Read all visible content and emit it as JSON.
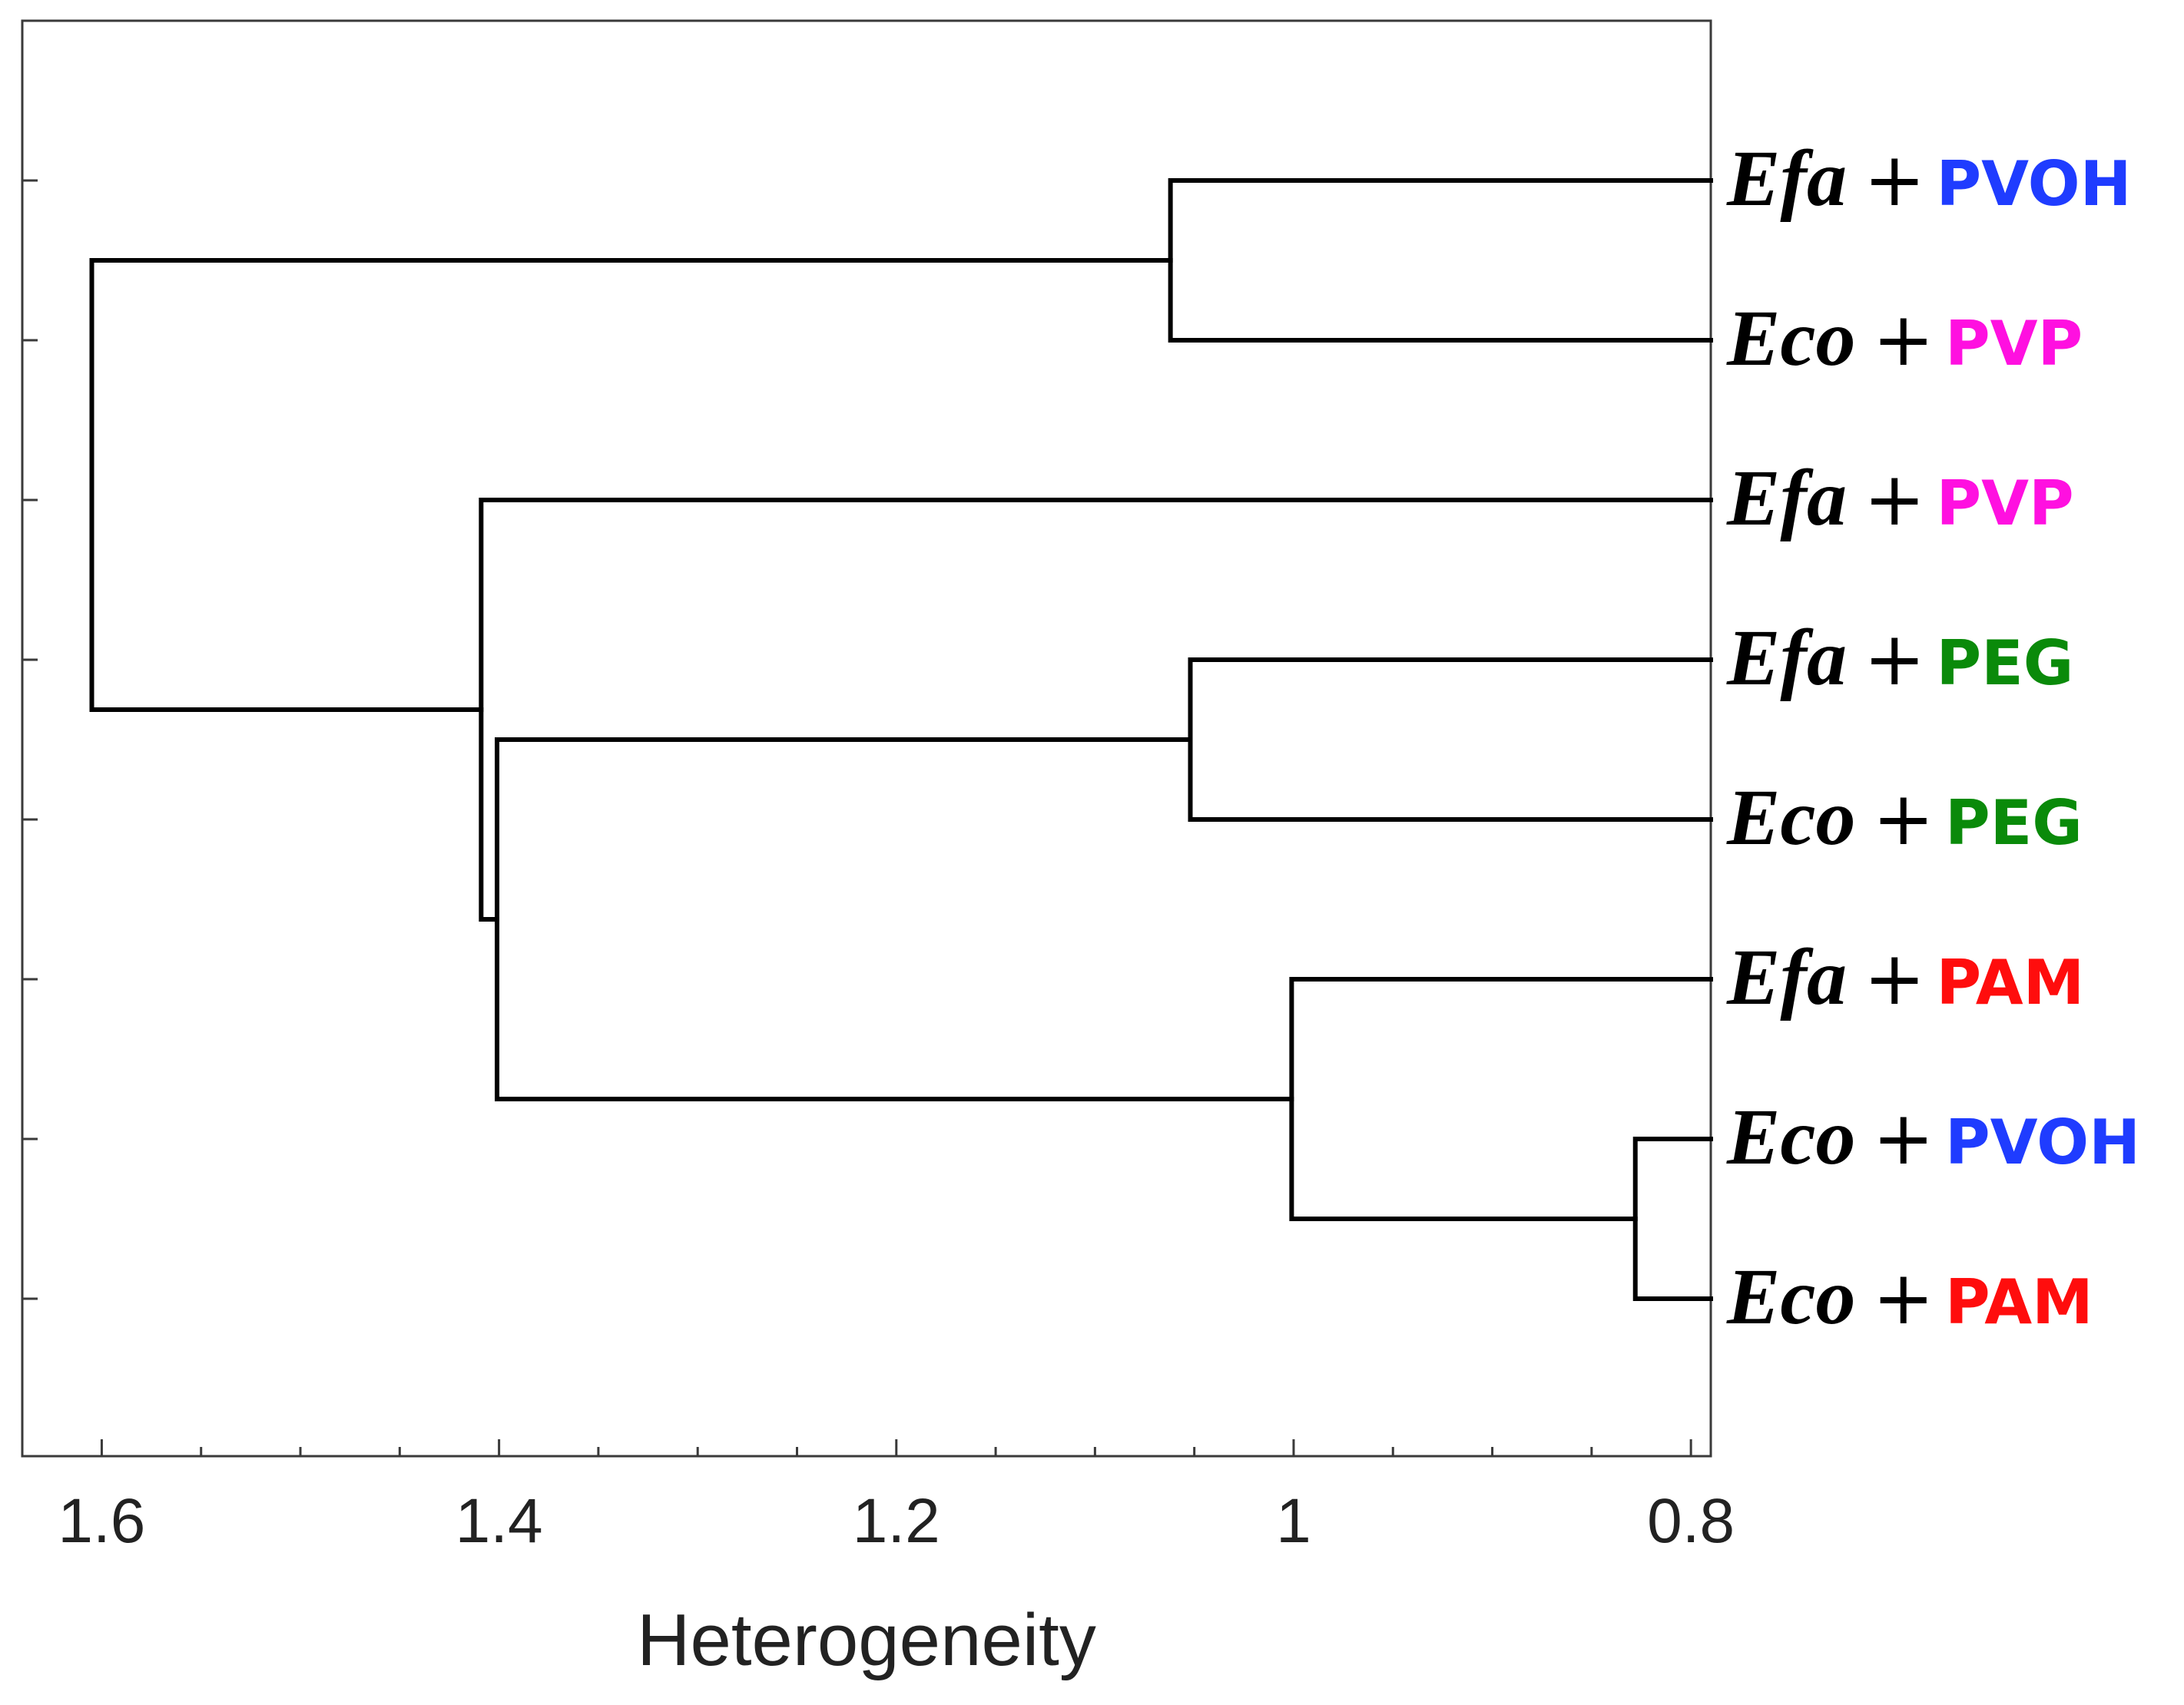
{
  "chart_data": {
    "type": "dendrogram",
    "xlabel": "Heterogeneity",
    "x_range": [
      1.64,
      0.79
    ],
    "x_ticks": [
      "1.6",
      "1.4",
      "1.2",
      "1",
      "0.8"
    ],
    "x_tick_values": [
      1.6,
      1.4,
      1.2,
      1.0,
      0.8
    ],
    "x_minor_tick_values": [
      1.55,
      1.5,
      1.45,
      1.35,
      1.3,
      1.25,
      1.15,
      1.1,
      1.05,
      0.95,
      0.9,
      0.85
    ],
    "grid": false,
    "leaves": [
      {
        "organism": "Efa",
        "plus": "+",
        "polymer": "PVOH",
        "color": "#1f3cff"
      },
      {
        "organism": "Eco",
        "plus": "+",
        "polymer": "PVP",
        "color": "#ff10e0"
      },
      {
        "organism": "Efa",
        "plus": "+",
        "polymer": "PVP",
        "color": "#ff10e0"
      },
      {
        "organism": "Efa",
        "plus": "+",
        "polymer": "PEG",
        "color": "#0a8a0a"
      },
      {
        "organism": "Eco",
        "plus": "+",
        "polymer": "PEG",
        "color": "#0a8a0a"
      },
      {
        "organism": "Efa",
        "plus": "+",
        "polymer": "PAM",
        "color": "#ff0d0d"
      },
      {
        "organism": "Eco",
        "plus": "+",
        "polymer": "PVOH",
        "color": "#1f3cff"
      },
      {
        "organism": "Eco",
        "plus": "+",
        "polymer": "PAM",
        "color": "#ff0d0d"
      }
    ],
    "merges": [
      {
        "id": "m1",
        "left": 6,
        "right": 7,
        "height": 0.828
      },
      {
        "id": "m2",
        "left": 5,
        "right": "m1",
        "height": 1.001
      },
      {
        "id": "m3",
        "left": 3,
        "right": 4,
        "height": 1.052
      },
      {
        "id": "m4",
        "left": 0,
        "right": 1,
        "height": 1.062
      },
      {
        "id": "m5",
        "left": "m3",
        "right": "m2",
        "height": 1.401
      },
      {
        "id": "m6",
        "left": 2,
        "right": "m5",
        "height": 1.409
      },
      {
        "id": "m7",
        "left": "m4",
        "right": "m6",
        "height": 1.605
      }
    ],
    "line_color": "#000000"
  }
}
